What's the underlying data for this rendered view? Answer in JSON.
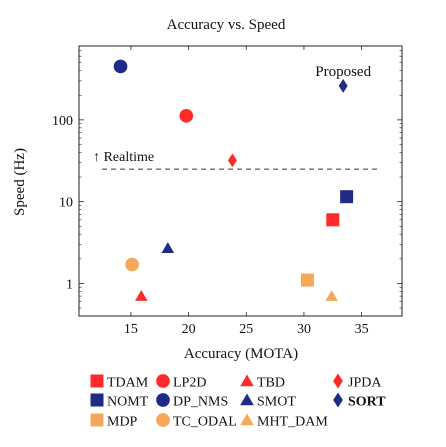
{
  "chart_data": {
    "type": "scatter",
    "title": "Accuracy vs. Speed",
    "xlabel": "Accuracy (MOTA)",
    "ylabel": "Speed (Hz)",
    "xlim": [
      10.5,
      38.5
    ],
    "ylim": [
      0.4,
      800
    ],
    "y_scale": "log",
    "x_ticks": [
      15,
      20,
      25,
      30,
      35
    ],
    "y_ticks": [
      1,
      10,
      100
    ],
    "y_tick_labels": [
      "1",
      "10",
      "100"
    ],
    "grid": false,
    "legend_position": "bottom",
    "colors": {
      "red": "#ff2b2b",
      "navy": "#1f2b86",
      "orange": "#f5a85a"
    },
    "series": [
      {
        "name": "TDAM",
        "marker": "square",
        "color": "#ff2b2b",
        "x": 32.5,
        "y": 6
      },
      {
        "name": "LP2D",
        "marker": "circle",
        "color": "#ff2b2b",
        "x": 19.8,
        "y": 112
      },
      {
        "name": "TBD",
        "marker": "triangle",
        "color": "#ff2b2b",
        "x": 15.9,
        "y": 0.7
      },
      {
        "name": "JPDA",
        "marker": "diamond",
        "color": "#ff2b2b",
        "x": 23.8,
        "y": 32
      },
      {
        "name": "NOMT",
        "marker": "square",
        "color": "#1f2b86",
        "x": 33.7,
        "y": 11.5
      },
      {
        "name": "DP_NMS",
        "marker": "circle",
        "color": "#1f2b86",
        "x": 14.1,
        "y": 450
      },
      {
        "name": "SMOT",
        "marker": "triangle",
        "color": "#1f2b86",
        "x": 18.2,
        "y": 2.7
      },
      {
        "name": "SORT",
        "marker": "diamond",
        "color": "#1f2b86",
        "x": 33.4,
        "y": 260,
        "bold": true
      },
      {
        "name": "MDP",
        "marker": "square",
        "color": "#f5a85a",
        "x": 30.3,
        "y": 1.1
      },
      {
        "name": "TC_ODAL",
        "marker": "circle",
        "color": "#f5a85a",
        "x": 15.1,
        "y": 1.7
      },
      {
        "name": "MHT_DAM",
        "marker": "triangle",
        "color": "#f5a85a",
        "x": 32.4,
        "y": 0.7
      }
    ],
    "annotations": {
      "realtime_label": "↑ Realtime",
      "realtime_y": 25,
      "realtime_x_range": [
        12.5,
        36.5
      ],
      "proposed_label": "Proposed"
    }
  }
}
